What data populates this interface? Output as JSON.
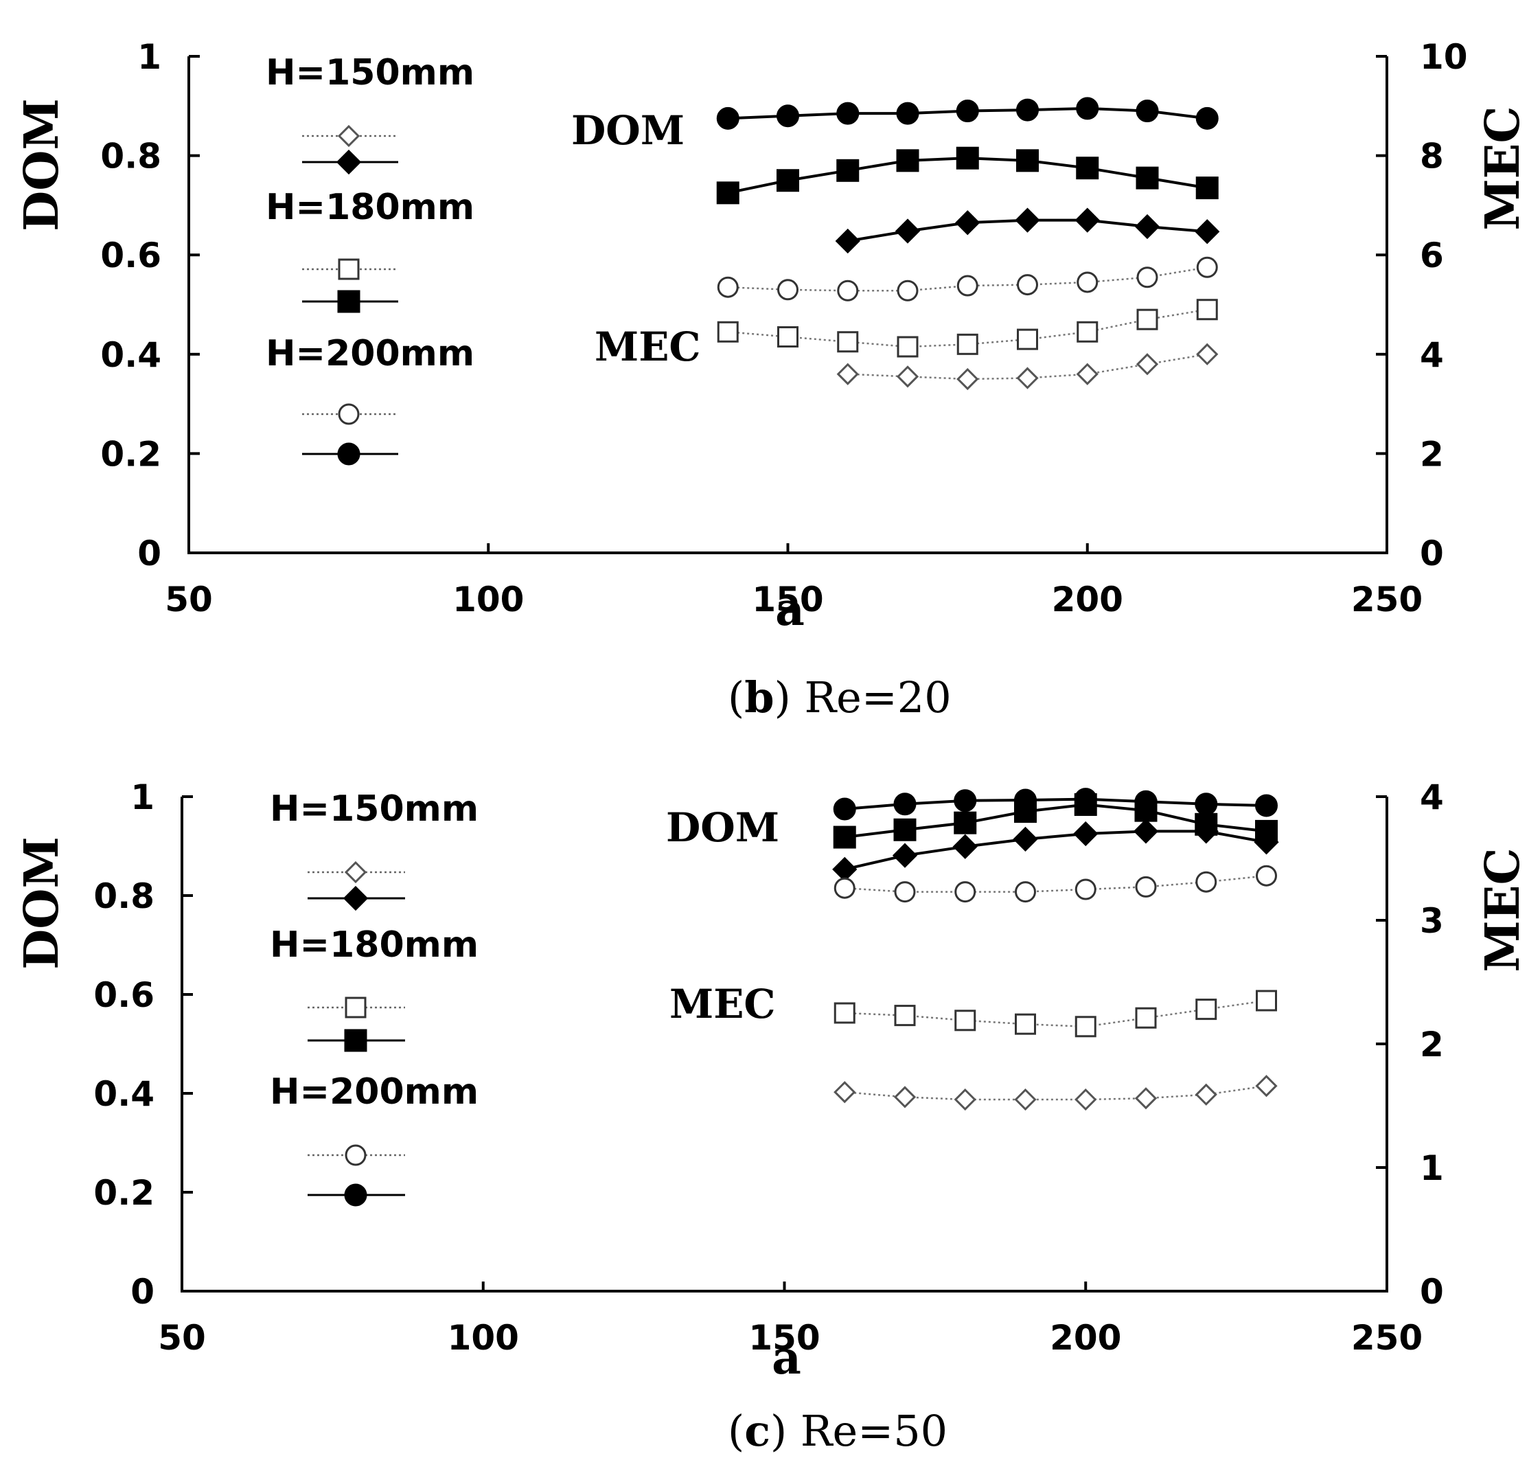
{
  "chart_data": [
    {
      "type": "line",
      "panel_label": "(b)",
      "caption": "Re=20",
      "caption_letter": "b",
      "xlabel": "a",
      "ylabel_left": "DOM",
      "ylabel_right": "MEC",
      "xlim": [
        50,
        250
      ],
      "ylim_left": [
        0,
        1
      ],
      "ylim_right": [
        0,
        10
      ],
      "xticks": [
        "50",
        "100",
        "150",
        "200",
        "250"
      ],
      "yticks_left": [
        "0",
        "0.2",
        "0.4",
        "0.6",
        "0.8",
        "1"
      ],
      "yticks_right": [
        "0",
        "2",
        "4",
        "6",
        "8",
        "10"
      ],
      "annotations": [
        "DOM",
        "MEC"
      ],
      "legend": {
        "placement": "top-left",
        "groups": [
          {
            "title": "H=150mm",
            "marker": "diamond"
          },
          {
            "title": "H=180mm",
            "marker": "square"
          },
          {
            "title": "H=200mm",
            "marker": "circle"
          }
        ]
      },
      "series": [
        {
          "group": "H=200mm",
          "metric": "DOM",
          "marker": "circle",
          "filled": true,
          "line": "solid",
          "axis": "left",
          "x": [
            140,
            150,
            160,
            170,
            180,
            190,
            200,
            210,
            220
          ],
          "y": [
            0.875,
            0.88,
            0.885,
            0.885,
            0.89,
            0.892,
            0.895,
            0.89,
            0.875
          ]
        },
        {
          "group": "H=180mm",
          "metric": "DOM",
          "marker": "square",
          "filled": true,
          "line": "solid",
          "axis": "left",
          "x": [
            140,
            150,
            160,
            170,
            180,
            190,
            200,
            210,
            220
          ],
          "y": [
            0.725,
            0.75,
            0.77,
            0.79,
            0.795,
            0.79,
            0.775,
            0.755,
            0.735
          ]
        },
        {
          "group": "H=150mm",
          "metric": "DOM",
          "marker": "diamond",
          "filled": true,
          "line": "solid",
          "axis": "left",
          "x": [
            160,
            170,
            180,
            190,
            200,
            210,
            220
          ],
          "y": [
            0.628,
            0.648,
            0.665,
            0.67,
            0.67,
            0.657,
            0.647
          ]
        },
        {
          "group": "H=200mm",
          "metric": "MEC",
          "marker": "circle",
          "filled": false,
          "line": "dotted",
          "axis": "right",
          "x": [
            140,
            150,
            160,
            170,
            180,
            190,
            200,
            210,
            220
          ],
          "y": [
            5.35,
            5.3,
            5.28,
            5.28,
            5.38,
            5.4,
            5.45,
            5.55,
            5.75
          ]
        },
        {
          "group": "H=180mm",
          "metric": "MEC",
          "marker": "square",
          "filled": false,
          "line": "dotted",
          "axis": "right",
          "x": [
            140,
            150,
            160,
            170,
            180,
            190,
            200,
            210,
            220
          ],
          "y": [
            4.45,
            4.35,
            4.25,
            4.15,
            4.2,
            4.3,
            4.45,
            4.7,
            4.9
          ]
        },
        {
          "group": "H=150mm",
          "metric": "MEC",
          "marker": "diamond",
          "filled": false,
          "line": "dotted",
          "axis": "right",
          "x": [
            160,
            170,
            180,
            190,
            200,
            210,
            220
          ],
          "y": [
            3.6,
            3.55,
            3.5,
            3.52,
            3.6,
            3.8,
            4.0
          ]
        }
      ]
    },
    {
      "type": "line",
      "panel_label": "(c)",
      "caption": "Re=50",
      "caption_letter": "c",
      "xlabel": "a",
      "ylabel_left": "DOM",
      "ylabel_right": "MEC",
      "xlim": [
        50,
        250
      ],
      "ylim_left": [
        0,
        1
      ],
      "ylim_right": [
        0,
        4
      ],
      "xticks": [
        "50",
        "100",
        "150",
        "200",
        "250"
      ],
      "yticks_left": [
        "0",
        "0.2",
        "0.4",
        "0.6",
        "0.8",
        "1"
      ],
      "yticks_right": [
        "0",
        "1",
        "2",
        "3",
        "4"
      ],
      "annotations": [
        "DOM",
        "MEC"
      ],
      "legend": {
        "placement": "top-left",
        "groups": [
          {
            "title": "H=150mm",
            "marker": "diamond"
          },
          {
            "title": "H=180mm",
            "marker": "square"
          },
          {
            "title": "H=200mm",
            "marker": "circle"
          }
        ]
      },
      "series": [
        {
          "group": "H=200mm",
          "metric": "DOM",
          "marker": "circle",
          "filled": true,
          "line": "solid",
          "axis": "left",
          "x": [
            160,
            170,
            180,
            190,
            200,
            210,
            220,
            230
          ],
          "y": [
            0.975,
            0.985,
            0.992,
            0.993,
            0.995,
            0.99,
            0.985,
            0.982
          ]
        },
        {
          "group": "H=180mm",
          "metric": "DOM",
          "marker": "square",
          "filled": true,
          "line": "solid",
          "axis": "left",
          "x": [
            160,
            170,
            180,
            190,
            200,
            210,
            220,
            230
          ],
          "y": [
            0.918,
            0.933,
            0.947,
            0.97,
            0.984,
            0.972,
            0.944,
            0.93
          ]
        },
        {
          "group": "H=150mm",
          "metric": "DOM",
          "marker": "diamond",
          "filled": true,
          "line": "solid",
          "axis": "left",
          "x": [
            160,
            170,
            180,
            190,
            200,
            210,
            220,
            230
          ],
          "y": [
            0.853,
            0.881,
            0.899,
            0.914,
            0.925,
            0.93,
            0.93,
            0.908
          ]
        },
        {
          "group": "H=200mm",
          "metric": "MEC",
          "marker": "circle",
          "filled": false,
          "line": "dotted",
          "axis": "right",
          "x": [
            160,
            170,
            180,
            190,
            200,
            210,
            220,
            230
          ],
          "y": [
            3.26,
            3.23,
            3.23,
            3.23,
            3.25,
            3.27,
            3.31,
            3.36
          ]
        },
        {
          "group": "H=180mm",
          "metric": "MEC",
          "marker": "square",
          "filled": false,
          "line": "dotted",
          "axis": "right",
          "x": [
            160,
            170,
            180,
            190,
            200,
            210,
            220,
            230
          ],
          "y": [
            2.25,
            2.23,
            2.19,
            2.16,
            2.14,
            2.21,
            2.28,
            2.35
          ]
        },
        {
          "group": "H=150mm",
          "metric": "MEC",
          "marker": "diamond",
          "filled": false,
          "line": "dotted",
          "axis": "right",
          "x": [
            160,
            170,
            180,
            190,
            200,
            210,
            220,
            230
          ],
          "y": [
            1.61,
            1.57,
            1.55,
            1.55,
            1.55,
            1.56,
            1.59,
            1.66
          ]
        }
      ]
    }
  ]
}
